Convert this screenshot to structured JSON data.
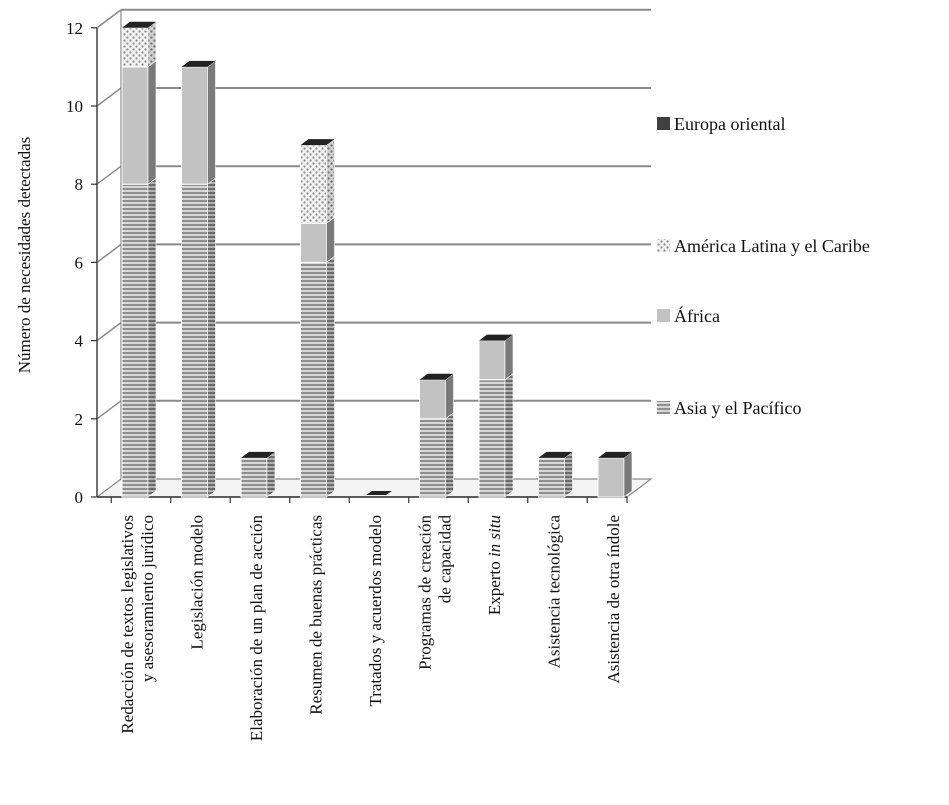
{
  "chart_data": {
    "type": "bar",
    "stacked": true,
    "three_d": true,
    "ylabel": "Número de necesidades detectadas",
    "ylim": [
      0,
      12
    ],
    "ytick_step": 2,
    "grid": true,
    "legend_position": "right",
    "categories": [
      [
        "Redacción de textos legislativos",
        "y asesoramiento jurídico"
      ],
      [
        "Legislación modelo"
      ],
      [
        "Elaboración de un plan de acción"
      ],
      [
        "Resumen de buenas prácticas"
      ],
      [
        "Tratados y acuerdos modelo"
      ],
      [
        "Programas de creación",
        "de capacidad"
      ],
      [
        "Experto in situ"
      ],
      [
        "Asistencia tecnológica"
      ],
      [
        "Asistencia de otra índole"
      ]
    ],
    "series": [
      {
        "name": "Asia y el Pacífico",
        "values": [
          8,
          8,
          1,
          6,
          0,
          2,
          3,
          1,
          0
        ],
        "pattern": "hlines",
        "color": "#9a9a9a"
      },
      {
        "name": "África",
        "values": [
          3,
          3,
          0,
          1,
          0,
          1,
          1,
          0,
          1
        ],
        "pattern": "solid",
        "color": "#c2c2c2"
      },
      {
        "name": "América Latina y el Caribe",
        "values": [
          1,
          0,
          0,
          2,
          0,
          0,
          0,
          0,
          0
        ],
        "pattern": "dots",
        "color": "#d8d8d8"
      },
      {
        "name": "Europa oriental",
        "values": [
          0,
          0,
          0,
          0,
          0,
          0,
          0,
          0,
          0
        ],
        "pattern": "solid",
        "color": "#404040"
      }
    ]
  }
}
